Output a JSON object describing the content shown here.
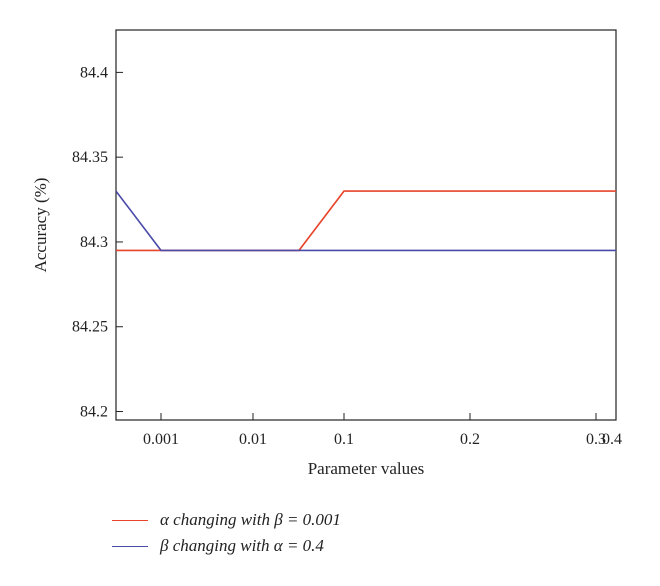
{
  "chart_data": {
    "type": "line",
    "categories": [
      "",
      "0.001",
      "0.01",
      "",
      "0.1",
      "0.2",
      "0.3",
      "0.4"
    ],
    "xlabel": "Parameter values",
    "ylabel": "Accuracy (%)",
    "ylim": [
      84.195,
      84.425
    ],
    "yticks": [
      "84.2",
      "84.25",
      "84.3",
      "84.35",
      "84.4"
    ],
    "grid": false,
    "legend_position": "bottom-left",
    "series": [
      {
        "name": "α changing with β = 0.001",
        "color": "#e8442a",
        "values": [
          84.295,
          84.295,
          84.295,
          84.295,
          84.33,
          84.33,
          84.33,
          84.33
        ]
      },
      {
        "name": "β changing with α = 0.4",
        "color": "#4a4aa8",
        "values": [
          84.33,
          84.295,
          84.295,
          84.295,
          84.295,
          84.295,
          84.295,
          84.295
        ]
      }
    ]
  }
}
